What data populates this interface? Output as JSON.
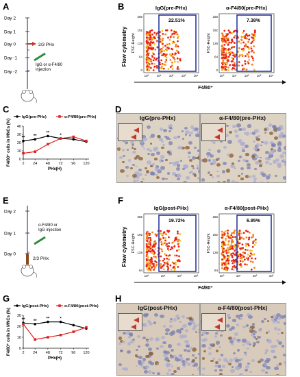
{
  "panels": {
    "A": {
      "letter": "A",
      "days": [
        "Day 2",
        "Day 1",
        "Day 0",
        "Day -1",
        "Day -2"
      ],
      "phx_label": "2/3 PHx",
      "injection_label": "IgG or α-F4/80\ninjection"
    },
    "B": {
      "letter": "B",
      "y_title": "Flow cytometry",
      "plots": [
        {
          "title": "IgG(pre-PHx)",
          "gate_pct": "22.51%"
        },
        {
          "title": "α-F4/80(pre-PHx)",
          "gate_pct": "7.38%"
        }
      ],
      "x_title": "F4/80⁺",
      "y_axis": "FSC-Height",
      "y_ticks": [
        "256",
        "192",
        "128",
        "64",
        "0"
      ],
      "x_ticks": [
        "10⁰",
        "10¹",
        "10²",
        "10³",
        "10⁴"
      ]
    },
    "C": {
      "letter": "C",
      "legend": [
        "IgG(pre-PHx)",
        "α-F4/80(pre-PHx)"
      ],
      "ylabel": "F4/80⁺ cells in MNCs (%)",
      "xlabel": "PHx(H)",
      "stars": [
        "**",
        "**",
        "**",
        "*"
      ]
    },
    "D": {
      "letter": "D",
      "titles": [
        "IgG(pre-PHx)",
        "α-F4/80(pre-PHx)"
      ]
    },
    "E": {
      "letter": "E",
      "days": [
        "Day 2",
        "Day 1",
        "Day 0"
      ],
      "injection_label": "α-F4/80 or\nIgG injection",
      "phx_label": "2/3 PHx"
    },
    "F": {
      "letter": "F",
      "y_title": "Flow cytometry",
      "plots": [
        {
          "title": "IgG(post-PHx)",
          "gate_pct": "19.72%"
        },
        {
          "title": "α-F4/80(post-PHx)",
          "gate_pct": "6.95%"
        }
      ],
      "x_title": "F4/80⁺",
      "y_axis": "FSC-Height",
      "y_ticks": [
        "256",
        "192",
        "128",
        "64"
      ],
      "x_ticks": [
        "10⁰",
        "10¹",
        "10²",
        "10³"
      ]
    },
    "G": {
      "letter": "G",
      "legend": [
        "IgG(post-PHx)",
        "α-F4/80(post-PHx)"
      ],
      "ylabel": "F4/80⁺ cells in MNCs (%)",
      "xlabel": "PHx(H)",
      "stars": [
        "**",
        "**",
        "**",
        "*"
      ]
    },
    "H": {
      "letter": "H",
      "titles": [
        "IgG(post-PHx)",
        "α-F4/80(post-PHx)"
      ]
    }
  },
  "chart_data": [
    {
      "type": "line",
      "title": "",
      "xlabel": "PHx(H)",
      "ylabel": "F4/80⁺ cells in MNCs (%)",
      "x": [
        2,
        24,
        48,
        72,
        96,
        120
      ],
      "ylim": [
        0,
        40
      ],
      "yticks": [
        0,
        10,
        20,
        30,
        40
      ],
      "series": [
        {
          "name": "IgG(pre-PHx)",
          "color": "#000000",
          "values": [
            22,
            24,
            28,
            25,
            24,
            21
          ]
        },
        {
          "name": "α-F4/80(pre-PHx)",
          "color": "#e02020",
          "values": [
            7,
            9,
            18,
            25,
            27,
            22
          ]
        }
      ]
    },
    {
      "type": "line",
      "title": "",
      "xlabel": "PHx(H)",
      "ylabel": "F4/80⁺ cells in MNCs (%)",
      "x": [
        2,
        24,
        48,
        72,
        96,
        120
      ],
      "ylim": [
        0,
        30
      ],
      "yticks": [
        0,
        10,
        20,
        30
      ],
      "series": [
        {
          "name": "IgG(post-PHx)",
          "color": "#000000",
          "values": [
            23,
            22,
            24,
            24,
            21,
            18
          ]
        },
        {
          "name": "α-F4/80(post-PHx)",
          "color": "#e02020",
          "values": [
            22,
            8,
            10,
            12,
            15,
            19
          ]
        }
      ]
    }
  ],
  "colors": {
    "gate": "#1a2a9c",
    "red": "#e02020",
    "tissue": "#ddd3c5"
  }
}
